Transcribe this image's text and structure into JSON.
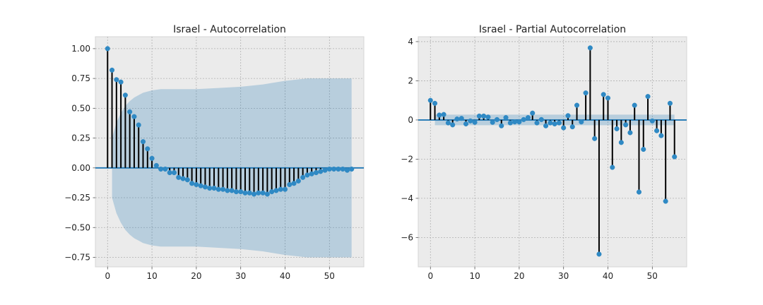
{
  "chart_data": [
    {
      "type": "stem",
      "title": "Israel - Autocorrelation",
      "xlabel": "",
      "ylabel": "",
      "xlim": [
        -2.75,
        57.75
      ],
      "ylim": [
        -0.83,
        1.1
      ],
      "xticks": [
        0,
        10,
        20,
        30,
        40,
        50
      ],
      "yticks": [
        -0.75,
        -0.5,
        -0.25,
        0.0,
        0.25,
        0.5,
        0.75,
        1.0
      ],
      "ytick_labels": [
        "−0.75",
        "−0.50",
        "−0.25",
        "0.00",
        "0.25",
        "0.50",
        "0.75",
        "1.00"
      ],
      "grid": true,
      "x": [
        0,
        1,
        2,
        3,
        4,
        5,
        6,
        7,
        8,
        9,
        10,
        11,
        12,
        13,
        14,
        15,
        16,
        17,
        18,
        19,
        20,
        21,
        22,
        23,
        24,
        25,
        26,
        27,
        28,
        29,
        30,
        31,
        32,
        33,
        34,
        35,
        36,
        37,
        38,
        39,
        40,
        41,
        42,
        43,
        44,
        45,
        46,
        47,
        48,
        49,
        50,
        51,
        52,
        53,
        54,
        55
      ],
      "values": [
        1.0,
        0.82,
        0.74,
        0.72,
        0.61,
        0.47,
        0.43,
        0.36,
        0.22,
        0.16,
        0.08,
        0.02,
        -0.01,
        -0.01,
        -0.04,
        -0.04,
        -0.08,
        -0.09,
        -0.1,
        -0.13,
        -0.14,
        -0.15,
        -0.16,
        -0.17,
        -0.17,
        -0.18,
        -0.18,
        -0.19,
        -0.19,
        -0.2,
        -0.2,
        -0.21,
        -0.21,
        -0.22,
        -0.21,
        -0.21,
        -0.22,
        -0.2,
        -0.19,
        -0.18,
        -0.18,
        -0.14,
        -0.13,
        -0.11,
        -0.08,
        -0.06,
        -0.05,
        -0.04,
        -0.03,
        -0.02,
        -0.01,
        -0.01,
        -0.01,
        -0.01,
        -0.02,
        -0.01
      ],
      "confidence_band": {
        "x": [
          1,
          2,
          3,
          4,
          5,
          6,
          7,
          8,
          10,
          12,
          15,
          20,
          25,
          30,
          35,
          40,
          45,
          50,
          55
        ],
        "upper": [
          0.25,
          0.38,
          0.46,
          0.52,
          0.56,
          0.59,
          0.61,
          0.63,
          0.65,
          0.66,
          0.66,
          0.66,
          0.67,
          0.68,
          0.7,
          0.73,
          0.75,
          0.75,
          0.75
        ]
      }
    },
    {
      "type": "stem",
      "title": "Israel - Partial Autocorrelation",
      "xlabel": "",
      "ylabel": "",
      "xlim": [
        -2.75,
        57.75
      ],
      "ylim": [
        -7.5,
        4.25
      ],
      "xticks": [
        0,
        10,
        20,
        30,
        40,
        50
      ],
      "yticks": [
        -6,
        -4,
        -2,
        0,
        2,
        4
      ],
      "ytick_labels": [
        "−6",
        "−4",
        "−2",
        "0",
        "2",
        "4"
      ],
      "grid": true,
      "x": [
        0,
        1,
        2,
        3,
        4,
        5,
        6,
        7,
        8,
        9,
        10,
        11,
        12,
        13,
        14,
        15,
        16,
        17,
        18,
        19,
        20,
        21,
        22,
        23,
        24,
        25,
        26,
        27,
        28,
        29,
        30,
        31,
        32,
        33,
        34,
        35,
        36,
        37,
        38,
        39,
        40,
        41,
        42,
        43,
        44,
        45,
        46,
        47,
        48,
        49,
        50,
        51,
        52,
        53,
        54,
        55
      ],
      "values": [
        1.0,
        0.85,
        0.25,
        0.28,
        -0.15,
        -0.25,
        0.05,
        0.08,
        -0.2,
        -0.05,
        -0.12,
        0.2,
        0.2,
        0.15,
        -0.12,
        0.02,
        -0.3,
        0.12,
        -0.15,
        -0.1,
        -0.1,
        0.02,
        0.12,
        0.35,
        -0.15,
        0.02,
        -0.3,
        -0.15,
        -0.2,
        -0.15,
        -0.4,
        0.22,
        -0.35,
        0.75,
        -0.1,
        1.38,
        3.68,
        -0.95,
        -6.85,
        1.3,
        1.12,
        -2.42,
        -0.45,
        -1.15,
        -0.25,
        -0.65,
        0.75,
        -3.68,
        -1.5,
        1.2,
        -0.05,
        -0.55,
        -0.8,
        -4.15,
        0.85,
        -1.88
      ],
      "confidence_band": {
        "x": [
          1,
          55
        ],
        "upper": [
          0.27,
          0.27
        ]
      }
    }
  ]
}
